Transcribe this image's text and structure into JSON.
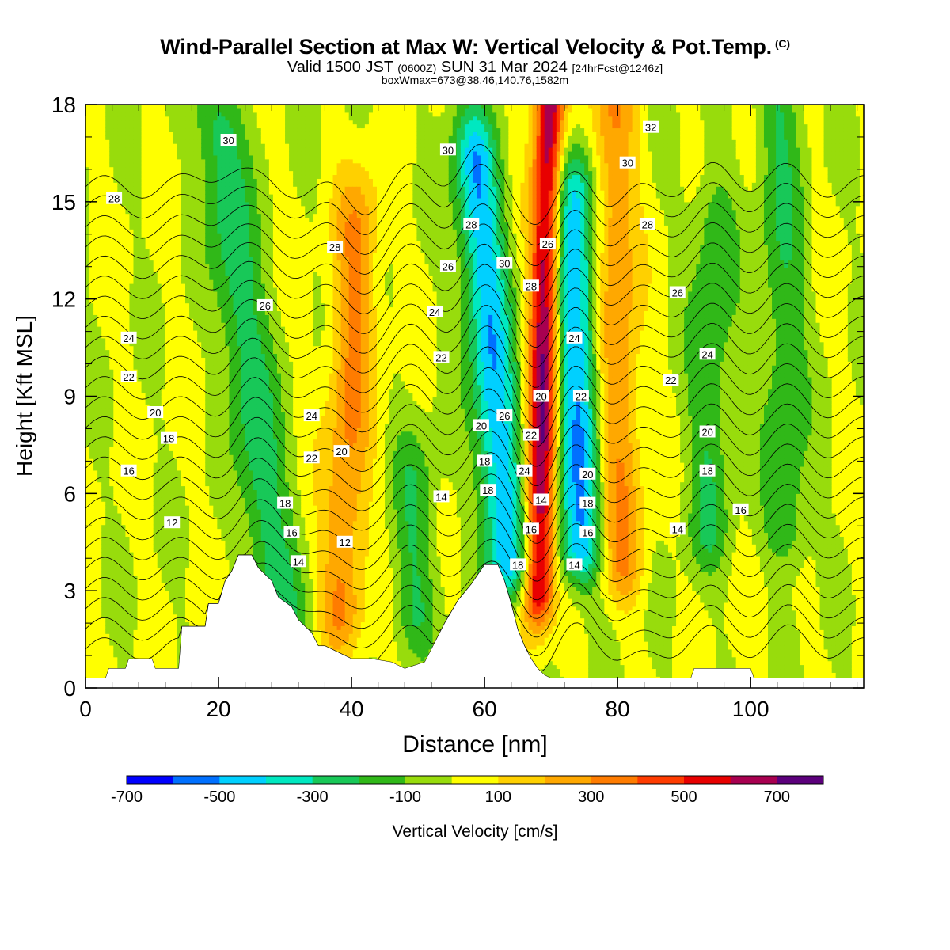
{
  "header": {
    "title": "Wind-Parallel Section at Max W: Vertical Velocity & Pot.Temp.",
    "copyright": "(C)",
    "valid_prefix": "Valid 1500 JST",
    "valid_utc": "(0600Z)",
    "valid_date": "SUN 31 Mar 2024",
    "forecast": "[24hrFcst@1246z]",
    "box_info": "boxWmax=673@38.46,140.76,1582m"
  },
  "colors": {
    "v_m700": "#0000ff",
    "v_m600": "#0070ff",
    "v_m500": "#00d0ff",
    "v_m400": "#00e8c0",
    "v_m300": "#18c858",
    "v_m200": "#30b818",
    "v_m100": "#98dc0c",
    "v_0": "#ffff00",
    "v_100": "#ffd000",
    "v_200": "#ffa800",
    "v_300": "#ff7c00",
    "v_400": "#ff3c00",
    "v_500": "#e80000",
    "v_600": "#a80050",
    "v_700": "#5c007c",
    "terrain": "#ffffff",
    "contour": "#000000"
  },
  "chart_data": {
    "type": "heatmap",
    "xlabel": "Distance [nm]",
    "ylabel": "Height [Kft MSL]",
    "xlim": [
      0,
      117
    ],
    "ylim": [
      0,
      18
    ],
    "xticks": [
      0,
      20,
      40,
      60,
      80,
      100
    ],
    "yticks": [
      0,
      3,
      6,
      9,
      12,
      15,
      18
    ],
    "grid": false,
    "colorbar": {
      "label": "Vertical Velocity [cm/s]",
      "levels": [
        -700,
        -600,
        -500,
        -400,
        -300,
        -200,
        -100,
        0,
        100,
        200,
        300,
        400,
        500,
        600,
        700,
        800
      ],
      "tick_labels": [
        "-700",
        "-500",
        "-300",
        "-100",
        "100",
        "300",
        "500",
        "700"
      ],
      "tick_values": [
        -700,
        -500,
        -300,
        -100,
        100,
        300,
        500,
        700
      ]
    },
    "terrain": {
      "unit": "Kft MSL",
      "x": [
        0,
        3,
        3.5,
        6,
        6.5,
        10,
        10.5,
        14,
        14.5,
        18,
        18.5,
        20,
        21,
        22,
        23,
        25,
        26,
        28,
        29,
        31,
        32,
        34,
        35,
        36,
        38,
        40,
        43,
        46,
        48,
        51,
        52,
        54,
        56,
        58,
        60,
        62,
        63,
        64,
        65,
        66,
        67,
        68,
        69,
        70,
        91,
        91.5,
        100,
        100.5,
        117
      ],
      "y": [
        0.3,
        0.3,
        0.6,
        0.6,
        0.9,
        0.9,
        0.6,
        0.6,
        1.9,
        1.9,
        2.6,
        2.6,
        3.3,
        3.6,
        4.1,
        4.1,
        3.7,
        3.3,
        2.8,
        2.5,
        2.1,
        1.7,
        1.3,
        1.3,
        1.1,
        0.9,
        0.9,
        0.8,
        0.6,
        0.8,
        1.2,
        2.0,
        2.7,
        3.2,
        3.8,
        3.8,
        3.3,
        2.6,
        1.8,
        1.3,
        0.9,
        0.6,
        0.4,
        0.3,
        0.3,
        0.6,
        0.6,
        0.3,
        0.3
      ]
    },
    "velocity_features": [
      {
        "kind": "updraft",
        "x": 68,
        "y_base": 3.2,
        "y_top": 18,
        "max": 700,
        "tilt_nm_per_kft": 0.12
      },
      {
        "kind": "downdraft",
        "x": 63.5,
        "y_base": 4,
        "y_top": 16,
        "min": -500,
        "tilt_nm_per_kft": -0.4
      },
      {
        "kind": "downdraft",
        "x": 74.5,
        "y_base": 4.5,
        "y_top": 15,
        "min": -500,
        "tilt_nm_per_kft": -0.1
      },
      {
        "kind": "updraft",
        "x": 38.5,
        "y_base": 2.5,
        "y_top": 14,
        "max": 300,
        "tilt_nm_per_kft": 0.2
      },
      {
        "kind": "downdraft",
        "x": 29,
        "y_base": 2.5,
        "y_top": 17,
        "min": -300,
        "tilt_nm_per_kft": -0.6
      },
      {
        "kind": "updraft",
        "x": 80.5,
        "y_base": 4,
        "y_top": 18,
        "max": 300,
        "tilt_nm_per_kft": -0.1
      },
      {
        "kind": "downdraft",
        "x": 49.5,
        "y_base": 2.5,
        "y_top": 6,
        "min": -200,
        "tilt_nm_per_kft": 0
      },
      {
        "kind": "downdraft",
        "x": 93.5,
        "y_base": 5,
        "y_top": 14,
        "min": -200,
        "tilt_nm_per_kft": 0.1
      },
      {
        "kind": "downdraft",
        "x": 105.5,
        "y_base": 5,
        "y_top": 18,
        "min": -200,
        "tilt_nm_per_kft": -0.1
      }
    ],
    "theta_contours": {
      "unit": "C",
      "values": [
        10,
        11,
        12,
        13,
        14,
        15,
        16,
        17,
        18,
        19,
        20,
        21,
        22,
        23,
        24,
        25,
        26,
        27,
        28,
        29,
        30,
        31,
        32,
        33
      ]
    },
    "contour_labels": [
      {
        "text": "30",
        "x": 21.5,
        "y": 16.9
      },
      {
        "text": "28",
        "x": 4.3,
        "y": 15.1
      },
      {
        "text": "28",
        "x": 37.5,
        "y": 13.6
      },
      {
        "text": "26",
        "x": 27,
        "y": 11.8
      },
      {
        "text": "24",
        "x": 6.5,
        "y": 10.8
      },
      {
        "text": "22",
        "x": 6.5,
        "y": 9.6
      },
      {
        "text": "20",
        "x": 10.5,
        "y": 8.5
      },
      {
        "text": "18",
        "x": 12.5,
        "y": 7.7
      },
      {
        "text": "16",
        "x": 6.5,
        "y": 6.7
      },
      {
        "text": "12",
        "x": 13,
        "y": 5.1
      },
      {
        "text": "24",
        "x": 34,
        "y": 8.4
      },
      {
        "text": "22",
        "x": 34,
        "y": 7.1
      },
      {
        "text": "20",
        "x": 38.5,
        "y": 7.3
      },
      {
        "text": "18",
        "x": 30,
        "y": 5.7
      },
      {
        "text": "16",
        "x": 31,
        "y": 4.8
      },
      {
        "text": "14",
        "x": 32,
        "y": 3.9
      },
      {
        "text": "12",
        "x": 39,
        "y": 4.5
      },
      {
        "text": "30",
        "x": 54.5,
        "y": 16.6
      },
      {
        "text": "28",
        "x": 58,
        "y": 14.3
      },
      {
        "text": "26",
        "x": 54.5,
        "y": 13
      },
      {
        "text": "24",
        "x": 52.5,
        "y": 11.6
      },
      {
        "text": "22",
        "x": 53.5,
        "y": 10.2
      },
      {
        "text": "14",
        "x": 53.5,
        "y": 5.9
      },
      {
        "text": "30",
        "x": 63,
        "y": 13.1
      },
      {
        "text": "26",
        "x": 63,
        "y": 8.4
      },
      {
        "text": "20",
        "x": 59.5,
        "y": 8.1
      },
      {
        "text": "18",
        "x": 60,
        "y": 7
      },
      {
        "text": "18",
        "x": 60.5,
        "y": 6.1
      },
      {
        "text": "26",
        "x": 69.5,
        "y": 13.7
      },
      {
        "text": "28",
        "x": 67,
        "y": 12.4
      },
      {
        "text": "20",
        "x": 68.5,
        "y": 9
      },
      {
        "text": "22",
        "x": 67,
        "y": 7.8
      },
      {
        "text": "24",
        "x": 66,
        "y": 6.7
      },
      {
        "text": "14",
        "x": 68.5,
        "y": 5.8
      },
      {
        "text": "16",
        "x": 67,
        "y": 4.9
      },
      {
        "text": "18",
        "x": 65,
        "y": 3.8
      },
      {
        "text": "24",
        "x": 73.5,
        "y": 10.8
      },
      {
        "text": "22",
        "x": 74.5,
        "y": 9
      },
      {
        "text": "20",
        "x": 75.5,
        "y": 6.6
      },
      {
        "text": "18",
        "x": 75.5,
        "y": 5.7
      },
      {
        "text": "16",
        "x": 75.5,
        "y": 4.8
      },
      {
        "text": "14",
        "x": 73.5,
        "y": 3.8
      },
      {
        "text": "32",
        "x": 85,
        "y": 17.3
      },
      {
        "text": "30",
        "x": 81.5,
        "y": 16.2
      },
      {
        "text": "28",
        "x": 84.5,
        "y": 14.3
      },
      {
        "text": "26",
        "x": 89,
        "y": 12.2
      },
      {
        "text": "24",
        "x": 93.5,
        "y": 10.3
      },
      {
        "text": "22",
        "x": 88,
        "y": 9.5
      },
      {
        "text": "20",
        "x": 93.5,
        "y": 7.9
      },
      {
        "text": "18",
        "x": 93.5,
        "y": 6.7
      },
      {
        "text": "16",
        "x": 98.5,
        "y": 5.5
      },
      {
        "text": "14",
        "x": 89,
        "y": 4.9
      }
    ]
  }
}
